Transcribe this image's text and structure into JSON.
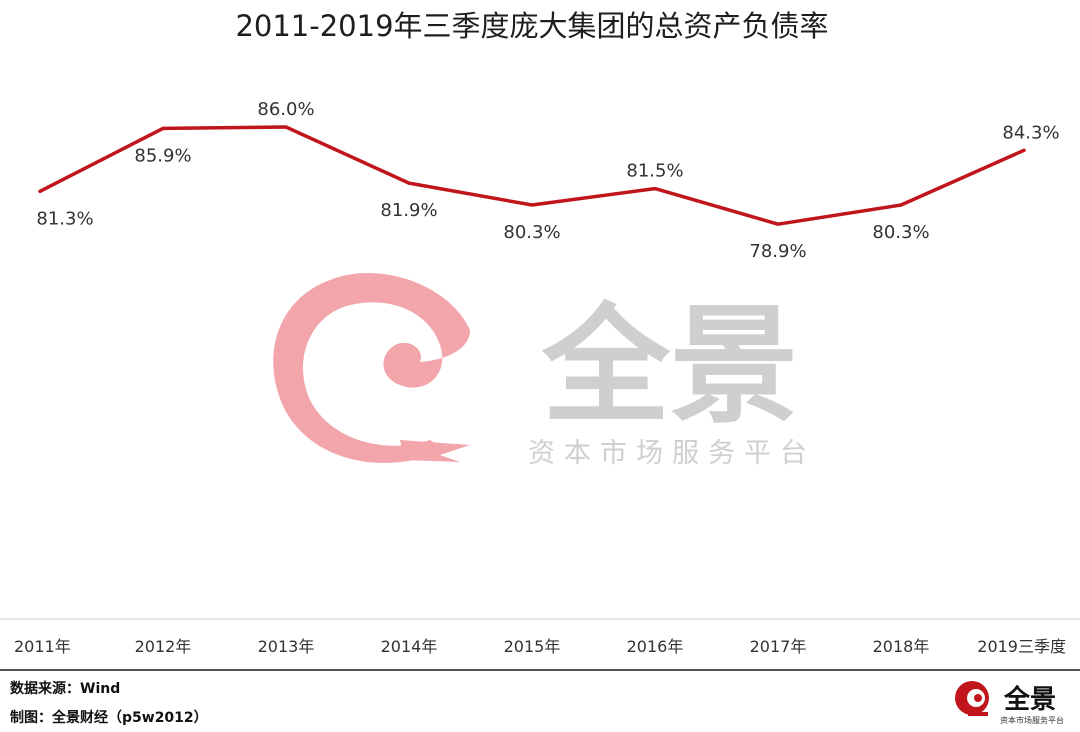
{
  "chart_data": {
    "type": "line",
    "title": "2011-2019年三季度庞大集团的总资产负债率",
    "categories": [
      "2011年",
      "2012年",
      "2013年",
      "2014年",
      "2015年",
      "2016年",
      "2017年",
      "2018年",
      "2019三季度"
    ],
    "values": [
      81.3,
      85.9,
      86.0,
      81.9,
      80.3,
      81.5,
      78.9,
      80.3,
      84.3
    ],
    "value_labels": [
      "81.3%",
      "85.9%",
      "86.0%",
      "81.9%",
      "80.3%",
      "81.5%",
      "78.9%",
      "80.3%",
      "84.3%"
    ],
    "line_color": "#c0151b",
    "ylim": [
      70,
      90
    ],
    "grid": false
  },
  "watermark": {
    "brand": "全景",
    "tagline": "资本市场服务平台",
    "color": "#f2a5aa"
  },
  "footer": {
    "source": "数据来源：Wind",
    "credit": "制图：全景财经（p5w2012）",
    "logo_brand": "全景",
    "logo_tagline": "资本市场服务平台",
    "logo_color": "#c0151b"
  }
}
